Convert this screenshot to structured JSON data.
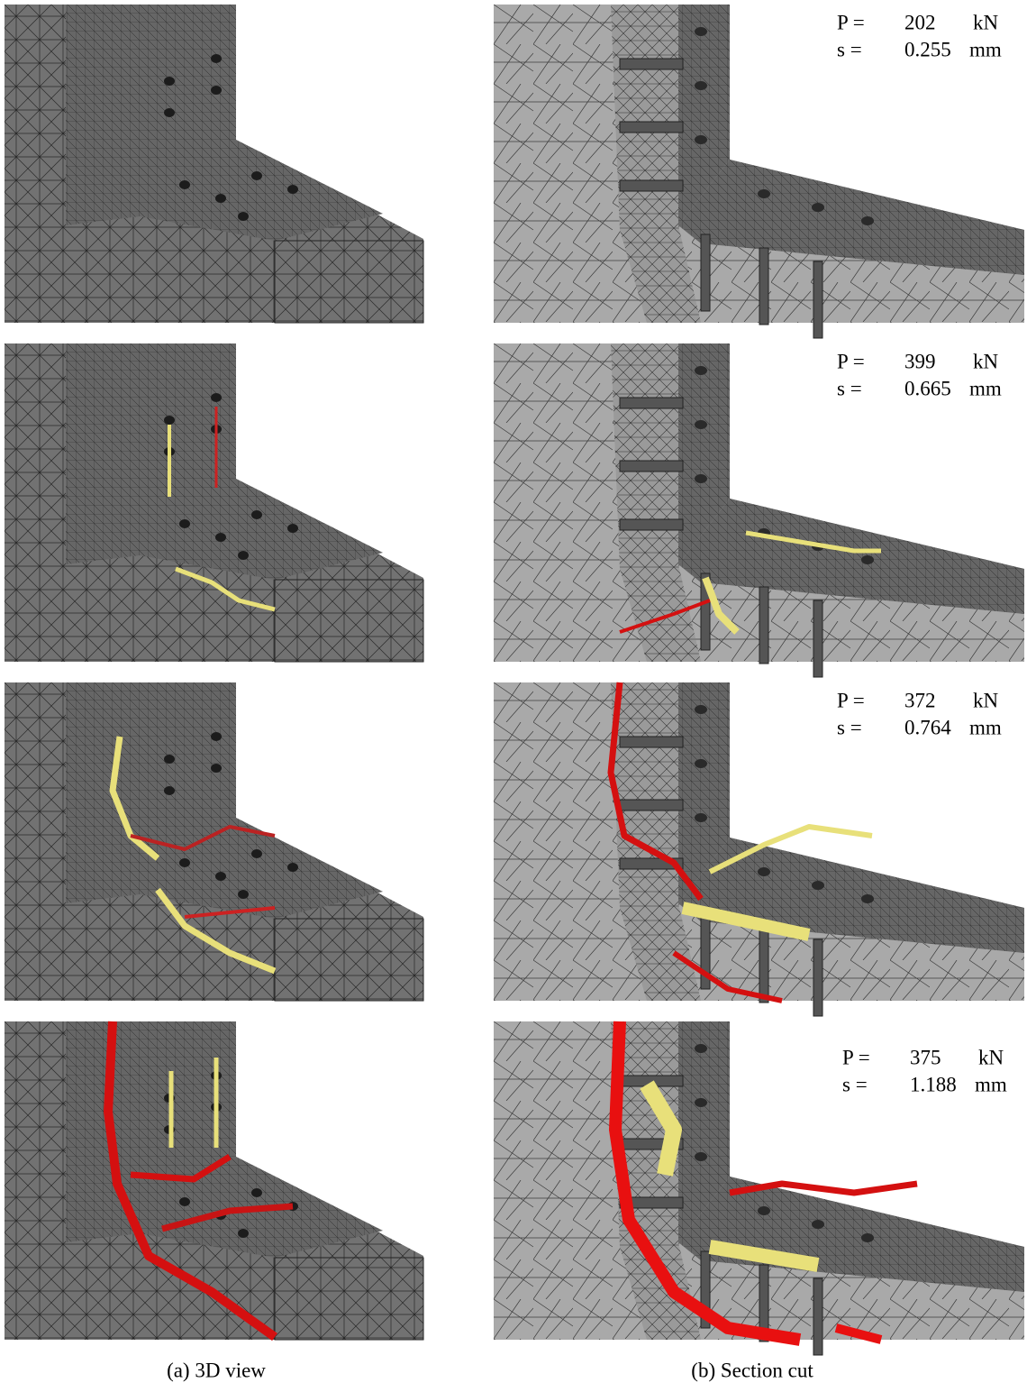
{
  "panels": [
    {
      "load_label": "P =",
      "load": "202",
      "load_unit": "kN",
      "slip_label": "s =",
      "slip": "0.255",
      "slip_unit": "mm"
    },
    {
      "load_label": "P =",
      "load": "399",
      "load_unit": "kN",
      "slip_label": "s =",
      "slip": "0.665",
      "slip_unit": "mm"
    },
    {
      "load_label": "P =",
      "load": "372",
      "load_unit": "kN",
      "slip_label": "s =",
      "slip": "0.764",
      "slip_unit": "mm"
    },
    {
      "load_label": "P =",
      "load": "375",
      "load_unit": "kN",
      "slip_label": "s =",
      "slip": "1.188",
      "slip_unit": "mm"
    }
  ],
  "captions": [
    "(a) 3D view",
    "(b) Section cut"
  ]
}
